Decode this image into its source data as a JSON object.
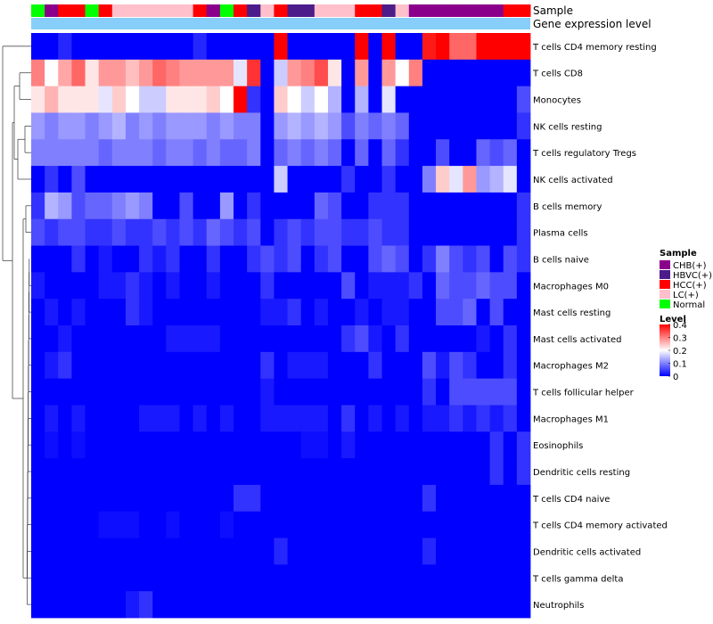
{
  "chart_data": {
    "type": "heatmap",
    "annotation_labels": [
      "Sample",
      "Gene expression level"
    ],
    "row_labels": [
      "T cells CD4 memory resting",
      "T cells CD8",
      "Monocytes",
      "NK cells resting",
      "T cells regulatory  Tregs",
      "NK cells activated",
      "B cells memory",
      "Plasma cells",
      "B cells naive",
      "Macrophages M0",
      "Mast cells resting",
      "Mast cells activated",
      "Macrophages M2",
      "T cells follicular helper",
      "Macrophages M1",
      "Eosinophils",
      "Dendritic cells resting",
      "T cells CD4 naive",
      "T cells CD4 memory activated",
      "Dendritic cells activated",
      "T cells gamma delta",
      "Neutrophils"
    ],
    "sample_groups": [
      "Normal",
      "CHB(+)",
      "HCC(+)",
      "HCC(+)",
      "Normal",
      "HCC(+)",
      "LC(+)",
      "LC(+)",
      "LC(+)",
      "LC(+)",
      "LC(+)",
      "LC(+)",
      "HCC(+)",
      "CHB(+)",
      "Normal",
      "HCC(+)",
      "HBVC(+)",
      "LC(+)",
      "HCC(+)",
      "HBVC(+)",
      "HBVC(+)",
      "LC(+)",
      "LC(+)",
      "LC(+)",
      "HCC(+)",
      "HCC(+)",
      "HBVC(+)",
      "LC(+)",
      "CHB(+)",
      "CHB(+)",
      "CHB(+)",
      "CHB(+)",
      "CHB(+)",
      "CHB(+)",
      "CHB(+)",
      "HCC(+)",
      "HCC(+)"
    ],
    "values": [
      [
        0.0,
        0.0,
        0.03,
        0.0,
        0.0,
        0.0,
        0.0,
        0.0,
        0.0,
        0.0,
        0.0,
        0.0,
        0.03,
        0.0,
        0.0,
        0.0,
        0.0,
        0.0,
        0.42,
        0.0,
        0.0,
        0.0,
        0.0,
        0.0,
        0.45,
        0.0,
        0.42,
        0.0,
        0.0,
        0.38,
        0.4,
        0.32,
        0.32,
        0.42,
        0.42,
        0.42,
        0.42
      ],
      [
        0.3,
        0.2,
        0.27,
        0.32,
        0.22,
        0.28,
        0.28,
        0.25,
        0.28,
        0.32,
        0.3,
        0.28,
        0.28,
        0.28,
        0.28,
        0.18,
        0.36,
        0.0,
        0.16,
        0.28,
        0.3,
        0.34,
        0.22,
        0.0,
        0.28,
        0.0,
        0.28,
        0.2,
        0.3,
        0.0,
        0.0,
        0.0,
        0.0,
        0.0,
        0.0,
        0.0,
        0.0
      ],
      [
        0.22,
        0.26,
        0.22,
        0.22,
        0.22,
        0.18,
        0.24,
        0.2,
        0.16,
        0.16,
        0.22,
        0.22,
        0.22,
        0.24,
        0.2,
        0.42,
        0.04,
        0.0,
        0.24,
        0.2,
        0.16,
        0.2,
        0.14,
        0.0,
        0.14,
        0.0,
        0.18,
        0.0,
        0.0,
        0.0,
        0.0,
        0.0,
        0.0,
        0.0,
        0.0,
        0.0,
        0.06
      ],
      [
        0.12,
        0.1,
        0.12,
        0.12,
        0.1,
        0.12,
        0.14,
        0.1,
        0.12,
        0.1,
        0.12,
        0.12,
        0.12,
        0.1,
        0.12,
        0.1,
        0.1,
        0.0,
        0.12,
        0.14,
        0.12,
        0.14,
        0.12,
        0.06,
        0.1,
        0.08,
        0.1,
        0.08,
        0.0,
        0.0,
        0.0,
        0.0,
        0.0,
        0.0,
        0.0,
        0.0,
        0.04
      ],
      [
        0.1,
        0.1,
        0.1,
        0.1,
        0.1,
        0.08,
        0.1,
        0.1,
        0.1,
        0.08,
        0.1,
        0.1,
        0.08,
        0.1,
        0.08,
        0.08,
        0.1,
        0.0,
        0.08,
        0.1,
        0.08,
        0.1,
        0.08,
        0.0,
        0.08,
        0.0,
        0.08,
        0.04,
        0.0,
        0.0,
        0.06,
        0.0,
        0.0,
        0.08,
        0.06,
        0.08,
        0.0
      ],
      [
        0.0,
        0.04,
        0.0,
        0.06,
        0.0,
        0.0,
        0.0,
        0.0,
        0.0,
        0.0,
        0.0,
        0.0,
        0.0,
        0.0,
        0.0,
        0.0,
        0.0,
        0.0,
        0.16,
        0.0,
        0.0,
        0.0,
        0.0,
        0.04,
        0.0,
        0.0,
        0.04,
        0.0,
        0.0,
        0.1,
        0.24,
        0.18,
        0.28,
        0.12,
        0.14,
        0.18,
        0.0
      ],
      [
        0.04,
        0.14,
        0.12,
        0.06,
        0.08,
        0.08,
        0.1,
        0.12,
        0.1,
        0.0,
        0.0,
        0.06,
        0.0,
        0.0,
        0.12,
        0.0,
        0.04,
        0.0,
        0.0,
        0.0,
        0.0,
        0.08,
        0.06,
        0.0,
        0.0,
        0.04,
        0.04,
        0.04,
        0.0,
        0.0,
        0.0,
        0.0,
        0.0,
        0.0,
        0.0,
        0.0,
        0.04
      ],
      [
        0.06,
        0.04,
        0.06,
        0.06,
        0.04,
        0.04,
        0.06,
        0.04,
        0.04,
        0.06,
        0.04,
        0.06,
        0.04,
        0.08,
        0.06,
        0.04,
        0.06,
        0.0,
        0.04,
        0.06,
        0.04,
        0.06,
        0.06,
        0.04,
        0.04,
        0.06,
        0.04,
        0.04,
        0.0,
        0.0,
        0.0,
        0.0,
        0.0,
        0.0,
        0.0,
        0.0,
        0.04
      ],
      [
        0.0,
        0.0,
        0.0,
        0.04,
        0.0,
        0.02,
        0.0,
        0.0,
        0.04,
        0.02,
        0.04,
        0.0,
        0.0,
        0.04,
        0.0,
        0.0,
        0.04,
        0.06,
        0.04,
        0.06,
        0.0,
        0.04,
        0.06,
        0.0,
        0.0,
        0.06,
        0.08,
        0.06,
        0.0,
        0.04,
        0.1,
        0.06,
        0.04,
        0.06,
        0.0,
        0.06,
        0.04
      ],
      [
        0.02,
        0.0,
        0.0,
        0.0,
        0.0,
        0.02,
        0.02,
        0.04,
        0.02,
        0.0,
        0.02,
        0.0,
        0.0,
        0.02,
        0.0,
        0.0,
        0.0,
        0.04,
        0.0,
        0.0,
        0.0,
        0.0,
        0.0,
        0.06,
        0.0,
        0.02,
        0.02,
        0.02,
        0.04,
        0.0,
        0.08,
        0.06,
        0.06,
        0.08,
        0.06,
        0.06,
        0.0
      ],
      [
        0.0,
        0.02,
        0.0,
        0.02,
        0.0,
        0.0,
        0.0,
        0.04,
        0.02,
        0.0,
        0.0,
        0.0,
        0.0,
        0.0,
        0.0,
        0.0,
        0.0,
        0.02,
        0.02,
        0.04,
        0.0,
        0.02,
        0.0,
        0.0,
        0.02,
        0.0,
        0.02,
        0.02,
        0.0,
        0.0,
        0.06,
        0.06,
        0.08,
        0.0,
        0.06,
        0.0,
        0.0
      ],
      [
        0.0,
        0.0,
        0.02,
        0.0,
        0.0,
        0.0,
        0.0,
        0.0,
        0.0,
        0.0,
        0.02,
        0.02,
        0.02,
        0.02,
        0.0,
        0.0,
        0.0,
        0.0,
        0.0,
        0.0,
        0.0,
        0.0,
        0.0,
        0.04,
        0.06,
        0.02,
        0.0,
        0.04,
        0.0,
        0.0,
        0.0,
        0.0,
        0.0,
        0.02,
        0.0,
        0.04,
        0.0
      ],
      [
        0.0,
        0.02,
        0.04,
        0.0,
        0.0,
        0.0,
        0.0,
        0.0,
        0.0,
        0.0,
        0.0,
        0.0,
        0.0,
        0.0,
        0.0,
        0.0,
        0.0,
        0.04,
        0.0,
        0.02,
        0.02,
        0.02,
        0.0,
        0.0,
        0.0,
        0.04,
        0.0,
        0.0,
        0.0,
        0.06,
        0.02,
        0.06,
        0.04,
        0.0,
        0.0,
        0.04,
        0.0
      ],
      [
        0.0,
        0.0,
        0.0,
        0.0,
        0.0,
        0.0,
        0.0,
        0.0,
        0.0,
        0.0,
        0.0,
        0.0,
        0.0,
        0.0,
        0.0,
        0.0,
        0.0,
        0.02,
        0.0,
        0.0,
        0.0,
        0.0,
        0.0,
        0.0,
        0.0,
        0.0,
        0.0,
        0.0,
        0.0,
        0.04,
        0.0,
        0.06,
        0.06,
        0.06,
        0.06,
        0.06,
        0.0
      ],
      [
        0.0,
        0.02,
        0.0,
        0.02,
        0.0,
        0.0,
        0.0,
        0.0,
        0.02,
        0.02,
        0.02,
        0.0,
        0.02,
        0.0,
        0.02,
        0.0,
        0.0,
        0.02,
        0.02,
        0.02,
        0.02,
        0.02,
        0.0,
        0.04,
        0.0,
        0.02,
        0.0,
        0.02,
        0.0,
        0.02,
        0.02,
        0.04,
        0.02,
        0.04,
        0.02,
        0.04,
        0.0
      ],
      [
        0.0,
        0.01,
        0.0,
        0.01,
        0.0,
        0.0,
        0.0,
        0.0,
        0.0,
        0.0,
        0.0,
        0.0,
        0.0,
        0.0,
        0.0,
        0.0,
        0.0,
        0.0,
        0.0,
        0.0,
        0.01,
        0.01,
        0.0,
        0.02,
        0.0,
        0.0,
        0.0,
        0.0,
        0.0,
        0.0,
        0.0,
        0.0,
        0.0,
        0.0,
        0.04,
        0.0,
        0.04
      ],
      [
        0.0,
        0.0,
        0.0,
        0.0,
        0.0,
        0.0,
        0.0,
        0.0,
        0.0,
        0.0,
        0.0,
        0.0,
        0.0,
        0.0,
        0.0,
        0.0,
        0.0,
        0.0,
        0.0,
        0.0,
        0.0,
        0.0,
        0.0,
        0.0,
        0.0,
        0.0,
        0.0,
        0.0,
        0.0,
        0.0,
        0.0,
        0.0,
        0.0,
        0.0,
        0.04,
        0.0,
        0.04
      ],
      [
        0.0,
        0.0,
        0.0,
        0.0,
        0.0,
        0.0,
        0.0,
        0.0,
        0.0,
        0.0,
        0.0,
        0.0,
        0.0,
        0.0,
        0.0,
        0.04,
        0.04,
        0.0,
        0.0,
        0.0,
        0.0,
        0.0,
        0.0,
        0.0,
        0.0,
        0.0,
        0.0,
        0.0,
        0.0,
        0.04,
        0.0,
        0.0,
        0.0,
        0.0,
        0.0,
        0.0,
        0.0
      ],
      [
        0.0,
        0.0,
        0.0,
        0.0,
        0.0,
        0.01,
        0.01,
        0.01,
        0.0,
        0.0,
        0.01,
        0.0,
        0.0,
        0.0,
        0.01,
        0.0,
        0.0,
        0.0,
        0.0,
        0.0,
        0.0,
        0.0,
        0.0,
        0.0,
        0.0,
        0.0,
        0.0,
        0.0,
        0.0,
        0.0,
        0.0,
        0.0,
        0.0,
        0.0,
        0.0,
        0.0,
        0.0
      ],
      [
        0.0,
        0.0,
        0.0,
        0.0,
        0.0,
        0.0,
        0.0,
        0.0,
        0.0,
        0.0,
        0.0,
        0.0,
        0.0,
        0.0,
        0.0,
        0.0,
        0.0,
        0.0,
        0.03,
        0.0,
        0.0,
        0.0,
        0.0,
        0.0,
        0.0,
        0.0,
        0.0,
        0.0,
        0.0,
        0.03,
        0.0,
        0.0,
        0.0,
        0.0,
        0.0,
        0.0,
        0.0
      ],
      [
        0.0,
        0.0,
        0.0,
        0.0,
        0.0,
        0.0,
        0.0,
        0.0,
        0.0,
        0.0,
        0.0,
        0.0,
        0.0,
        0.0,
        0.0,
        0.0,
        0.0,
        0.0,
        0.0,
        0.0,
        0.0,
        0.0,
        0.0,
        0.0,
        0.0,
        0.0,
        0.0,
        0.0,
        0.0,
        0.0,
        0.0,
        0.0,
        0.0,
        0.0,
        0.0,
        0.0,
        0.0
      ],
      [
        0.0,
        0.0,
        0.0,
        0.0,
        0.0,
        0.0,
        0.0,
        0.02,
        0.04,
        0.0,
        0.0,
        0.0,
        0.0,
        0.0,
        0.0,
        0.0,
        0.0,
        0.0,
        0.0,
        0.0,
        0.0,
        0.0,
        0.0,
        0.0,
        0.0,
        0.0,
        0.0,
        0.0,
        0.0,
        0.0,
        0.0,
        0.0,
        0.0,
        0.0,
        0.0,
        0.0,
        0.0
      ]
    ],
    "color_scale": {
      "min": 0,
      "mid": 0.2,
      "max": 0.4
    },
    "legend_sample": {
      "title": "Sample",
      "items": [
        {
          "label": "CHB(+)",
          "color": "#8B008B"
        },
        {
          "label": "HBVC(+)",
          "color": "#4B1C8A"
        },
        {
          "label": "HCC(+)",
          "color": "#FF0000"
        },
        {
          "label": "LC(+)",
          "color": "#FFC0CB"
        },
        {
          "label": "Normal",
          "color": "#00FF00"
        }
      ]
    },
    "legend_level": {
      "title": "Level",
      "ticks": [
        "0.4",
        "0.3",
        "0.2",
        "0.1",
        "0"
      ],
      "tick_values": [
        0.4,
        0.3,
        0.2,
        0.1,
        0
      ]
    },
    "expression_bar_color": "#87CEFA",
    "low_color": "#0000FF",
    "mid_color": "#FFFFFF",
    "high_color": "#FF0000"
  }
}
